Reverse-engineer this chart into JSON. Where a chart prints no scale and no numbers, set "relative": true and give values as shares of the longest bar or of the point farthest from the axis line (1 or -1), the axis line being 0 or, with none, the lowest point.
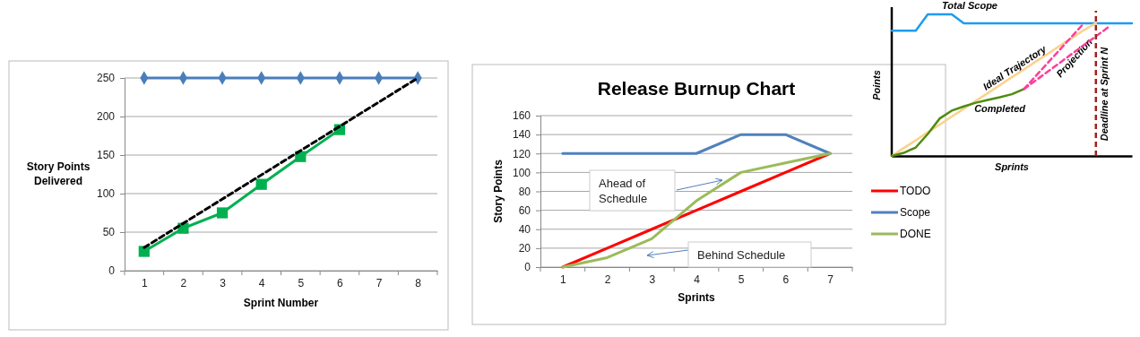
{
  "chart_data": [
    {
      "type": "line",
      "ylabel": "Story Points Delivered",
      "xlabel": "Sprint Number",
      "x": [
        1,
        2,
        3,
        4,
        5,
        6,
        7,
        8
      ],
      "xlim": [
        0.5,
        8.5
      ],
      "xticks": [
        1,
        2,
        3,
        4,
        5,
        6,
        7,
        8
      ],
      "ylim": [
        0,
        250
      ],
      "yticks": [
        0,
        50,
        100,
        150,
        200,
        250
      ],
      "grid": "y",
      "legend": false,
      "series": [
        {
          "color": "#4a7ebb",
          "marker": "diamond",
          "values": [
            250,
            250,
            250,
            250,
            250,
            250,
            250,
            250
          ]
        },
        {
          "color": "#00b050",
          "marker": "square",
          "values": [
            25,
            55,
            75,
            112,
            148,
            183,
            null,
            null
          ]
        },
        {
          "color": "#000000",
          "marker": "none",
          "line_style": "dashed",
          "x": [
            1,
            8
          ],
          "values": [
            30,
            250
          ]
        }
      ]
    },
    {
      "type": "line",
      "title": "Release Burnup Chart",
      "ylabel": "Story Points",
      "xlabel": "Sprints",
      "x": [
        1,
        2,
        3,
        4,
        5,
        6,
        7
      ],
      "xlim": [
        0.5,
        7.5
      ],
      "xticks": [
        1,
        2,
        3,
        4,
        5,
        6,
        7
      ],
      "ylim": [
        0,
        160
      ],
      "yticks": [
        0,
        20,
        40,
        60,
        80,
        100,
        120,
        140,
        160
      ],
      "grid": "y",
      "legend": "right",
      "marker": "none",
      "series": [
        {
          "name": "TODO",
          "color": "#ff0000",
          "values": [
            0,
            20,
            40,
            60,
            80,
            100,
            120
          ]
        },
        {
          "name": "Scope",
          "color": "#4f81bd",
          "values": [
            120,
            120,
            120,
            120,
            140,
            140,
            120
          ]
        },
        {
          "name": "DONE",
          "color": "#9bbb59",
          "values": [
            0,
            10,
            30,
            70,
            100,
            110,
            120
          ]
        }
      ],
      "annotations": [
        "Ahead of Schedule",
        "Behind Schedule"
      ]
    },
    {
      "type": "line",
      "relative": true,
      "ylabel": "Points",
      "xlabel": "Sprints",
      "legend": false,
      "marker": "none",
      "categories": [
        null,
        null,
        null,
        null,
        null,
        null,
        null,
        null,
        null,
        null,
        null,
        null,
        null,
        null,
        null,
        null,
        null,
        null,
        null,
        null,
        null
      ],
      "series": [
        {
          "name": "Total Scope",
          "color": "#1e9bf0",
          "values": [
            0.884,
            0.884,
            0.884,
            1,
            1,
            1,
            0.937,
            0.937,
            0.937,
            0.937,
            0.937,
            0.937,
            0.937,
            0.937,
            0.937,
            0.937,
            0.937,
            0.937,
            0.937,
            0.937,
            0.937
          ]
        },
        {
          "name": "Ideal Trajectory",
          "color": "#fcd18a",
          "values": [
            0,
            0.056,
            0.111,
            0.167,
            0.222,
            0.278,
            0.333,
            0.389,
            0.444,
            0.5,
            0.556,
            0.611,
            0.667,
            0.722,
            0.778,
            0.833,
            0.889,
            0.937,
            null,
            null,
            null
          ]
        },
        {
          "name": "Completed",
          "color": "#4e8c12",
          "values": [
            0,
            0.022,
            0.06,
            0.155,
            0.265,
            0.32,
            0.35,
            0.376,
            0.396,
            0.415,
            0.436,
            0.472,
            null,
            null,
            null,
            null,
            null,
            null,
            null,
            null,
            null
          ]
        },
        {
          "name": "Projection",
          "color": "#ff3d9a",
          "line_style": "dashed",
          "values": [
            null,
            null,
            null,
            null,
            null,
            null,
            null,
            null,
            null,
            null,
            null,
            0.472,
            0.565,
            0.658,
            0.751,
            0.844,
            0.937,
            null,
            null,
            null,
            null
          ]
        },
        {
          "color": "#ff3d9a",
          "line_style": "dashed",
          "values": [
            null,
            null,
            null,
            null,
            null,
            null,
            null,
            null,
            null,
            null,
            null,
            0.472,
            0.534,
            0.596,
            0.658,
            0.721,
            0.783,
            0.845,
            0.907,
            null,
            null
          ]
        }
      ],
      "annotations": [
        "Deadline at Sprint N"
      ]
    }
  ]
}
